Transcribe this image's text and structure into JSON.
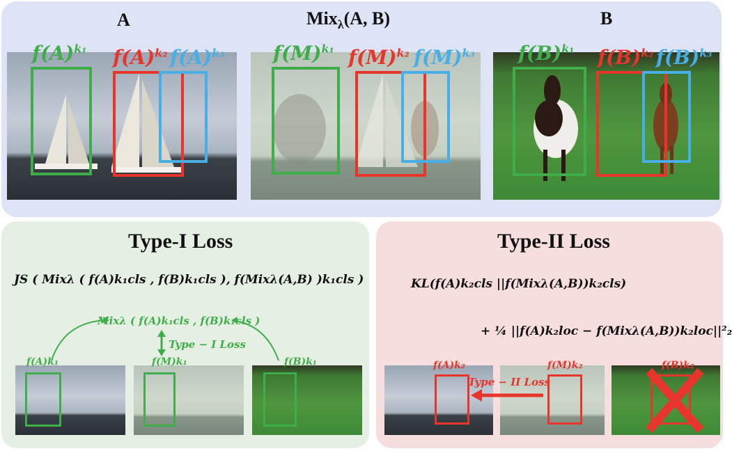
{
  "top": {
    "header_a": "A",
    "header_mix_prefix": "Mix",
    "header_mix_sub": "λ",
    "header_mix_args": "(A, B)",
    "header_b": "B",
    "labels_a": [
      "f(A)",
      "k₁",
      "f(A)",
      "k₂",
      "f(A)",
      "k₃"
    ],
    "labels_m": [
      "f(M)",
      "k₁",
      "f(M)",
      "k₂",
      "f(M)",
      "k₃"
    ],
    "labels_b": [
      "f(B)",
      "k₁",
      "f(B)",
      "k₂",
      "f(B)",
      "k₃"
    ]
  },
  "type1": {
    "title": "Type-I Loss",
    "formula": "JS ( Mixλ ( f(A)k₁cls , f(B)k₁cls ),  f(Mixλ(A,B) )k₁cls )",
    "mix_label": "Mixλ ( f(A)k₁cls , f(B)k₁cls )",
    "arrow_label": "Type − I Loss",
    "thumb_labels": [
      "f(A)k₁",
      "f(M)k₁",
      "f(B)k₁"
    ]
  },
  "type2": {
    "title": "Type-II Loss",
    "formula_line1": "KL(f(A)k₂cls ||f(Mixλ(A,B))k₂cls)",
    "formula_line2": "+ ¼ ||f(A)k₂loc − f(Mixλ(A,B))k₂loc||²₂",
    "arrow_label": "Type − II Loss",
    "thumb_labels": [
      "f(A)k₂",
      "f(M)k₂",
      "f(B)k₂"
    ]
  },
  "colors": {
    "green": "#3fae4a",
    "red": "#e8352b",
    "blue": "#47aee6",
    "top_panel": "#dfe3f6",
    "left_panel": "#e6efe3",
    "right_panel": "#f6dede"
  },
  "icons": [
    "sailboat-icon",
    "horse-icon",
    "cross-icon",
    "arrow-icon"
  ]
}
